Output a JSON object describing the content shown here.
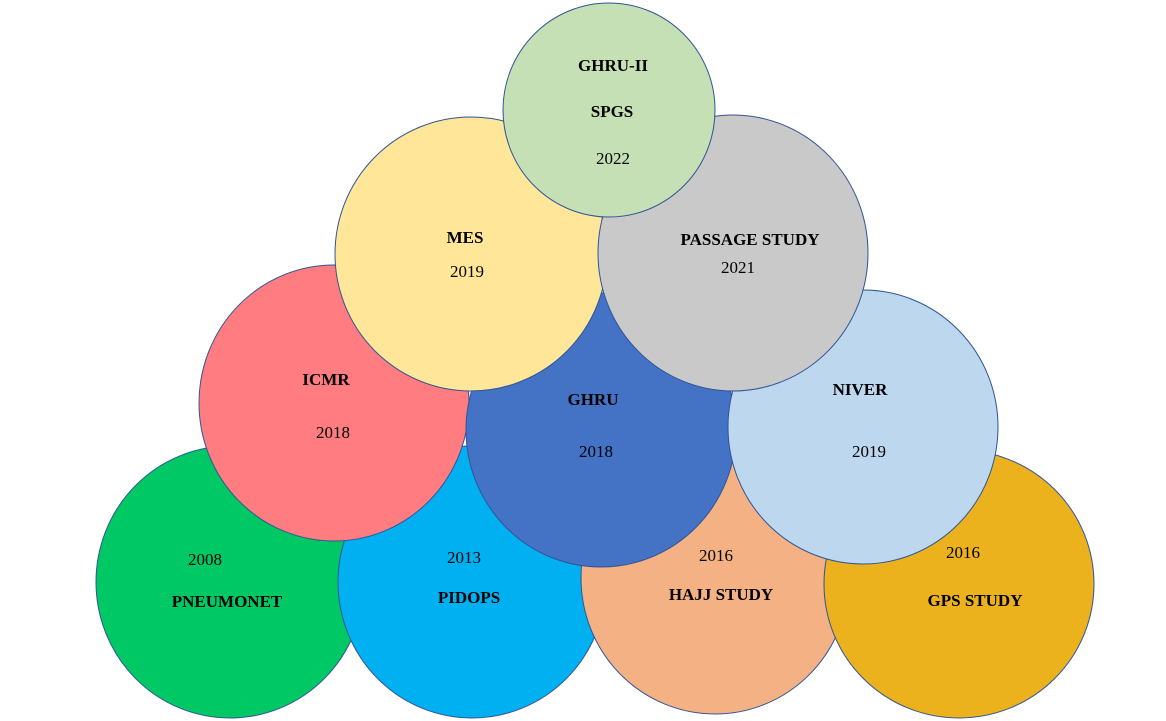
{
  "circles": [
    {
      "id": "pneumonet",
      "name": "PNEUMONET",
      "year": "2008",
      "color": "#00c864"
    },
    {
      "id": "pidops",
      "name": "PIDOPS",
      "year": "2013",
      "color": "#00b0f0"
    },
    {
      "id": "hajj-study",
      "name": "HAJJ STUDY",
      "year": "2016",
      "color": "#f4b183"
    },
    {
      "id": "gps-study",
      "name": "GPS STUDY",
      "year": "2016",
      "color": "#ecb21e"
    },
    {
      "id": "icmr",
      "name": "ICMR",
      "year": "2018",
      "color": "#ff7c80"
    },
    {
      "id": "ghru",
      "name": "GHRU",
      "year": "2018",
      "color": "#4472c4"
    },
    {
      "id": "niver",
      "name": "NIVER",
      "year": "2019",
      "color": "#bdd7ee"
    },
    {
      "id": "mes",
      "name": "MES",
      "year": "2019",
      "color": "#ffe699"
    },
    {
      "id": "passage-study",
      "name": "PASSAGE STUDY",
      "year": "2021",
      "color": "#c9c9c9"
    },
    {
      "id": "ghru-ii",
      "name": "GHRU-II",
      "subname": "SPGS",
      "year": "2022",
      "color": "#c5e0b4"
    }
  ],
  "outline_color": "#2f5597"
}
